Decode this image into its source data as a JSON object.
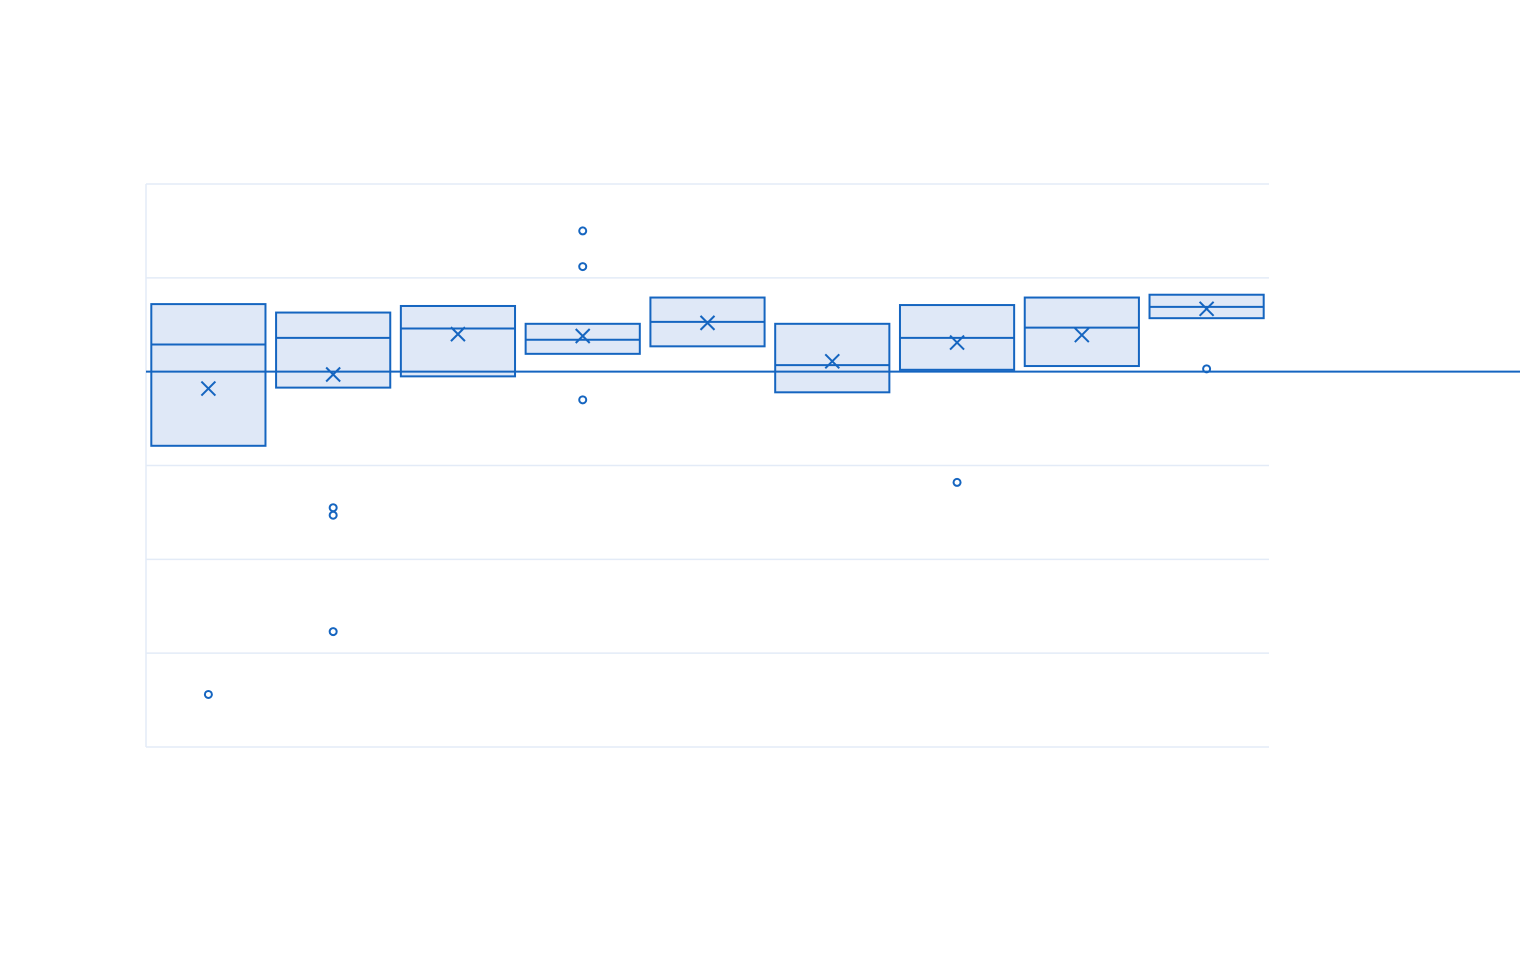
{
  "chart_data": {
    "type": "box",
    "title": "",
    "xlabel": "",
    "ylabel": "",
    "ylim": [
      -4,
      2
    ],
    "grid": true,
    "reference_line": 0,
    "colors": {
      "line": "#1565c0",
      "fill": "#dfe8f7",
      "grid": "#e3ebf7"
    },
    "boxes": [
      {
        "q1": -0.79,
        "median": 0.29,
        "q3": 0.72,
        "mean": -0.18,
        "outliers": [
          -3.44
        ]
      },
      {
        "q1": -0.17,
        "median": 0.36,
        "q3": 0.63,
        "mean": -0.03,
        "outliers": [
          -1.45,
          -1.53,
          -2.77
        ]
      },
      {
        "q1": -0.05,
        "median": 0.46,
        "q3": 0.7,
        "mean": 0.4,
        "outliers": []
      },
      {
        "q1": 0.19,
        "median": 0.34,
        "q3": 0.51,
        "mean": 0.38,
        "outliers": [
          1.5,
          1.12,
          -0.3
        ]
      },
      {
        "q1": 0.27,
        "median": 0.53,
        "q3": 0.79,
        "mean": 0.52,
        "outliers": []
      },
      {
        "q1": -0.22,
        "median": 0.07,
        "q3": 0.51,
        "mean": 0.11,
        "outliers": []
      },
      {
        "q1": 0.02,
        "median": 0.36,
        "q3": 0.71,
        "mean": 0.31,
        "outliers": [
          -1.18
        ]
      },
      {
        "q1": 0.06,
        "median": 0.47,
        "q3": 0.79,
        "mean": 0.39,
        "outliers": []
      },
      {
        "q1": 0.57,
        "median": 0.69,
        "q3": 0.82,
        "mean": 0.67,
        "outliers": [
          0.03
        ]
      }
    ]
  }
}
